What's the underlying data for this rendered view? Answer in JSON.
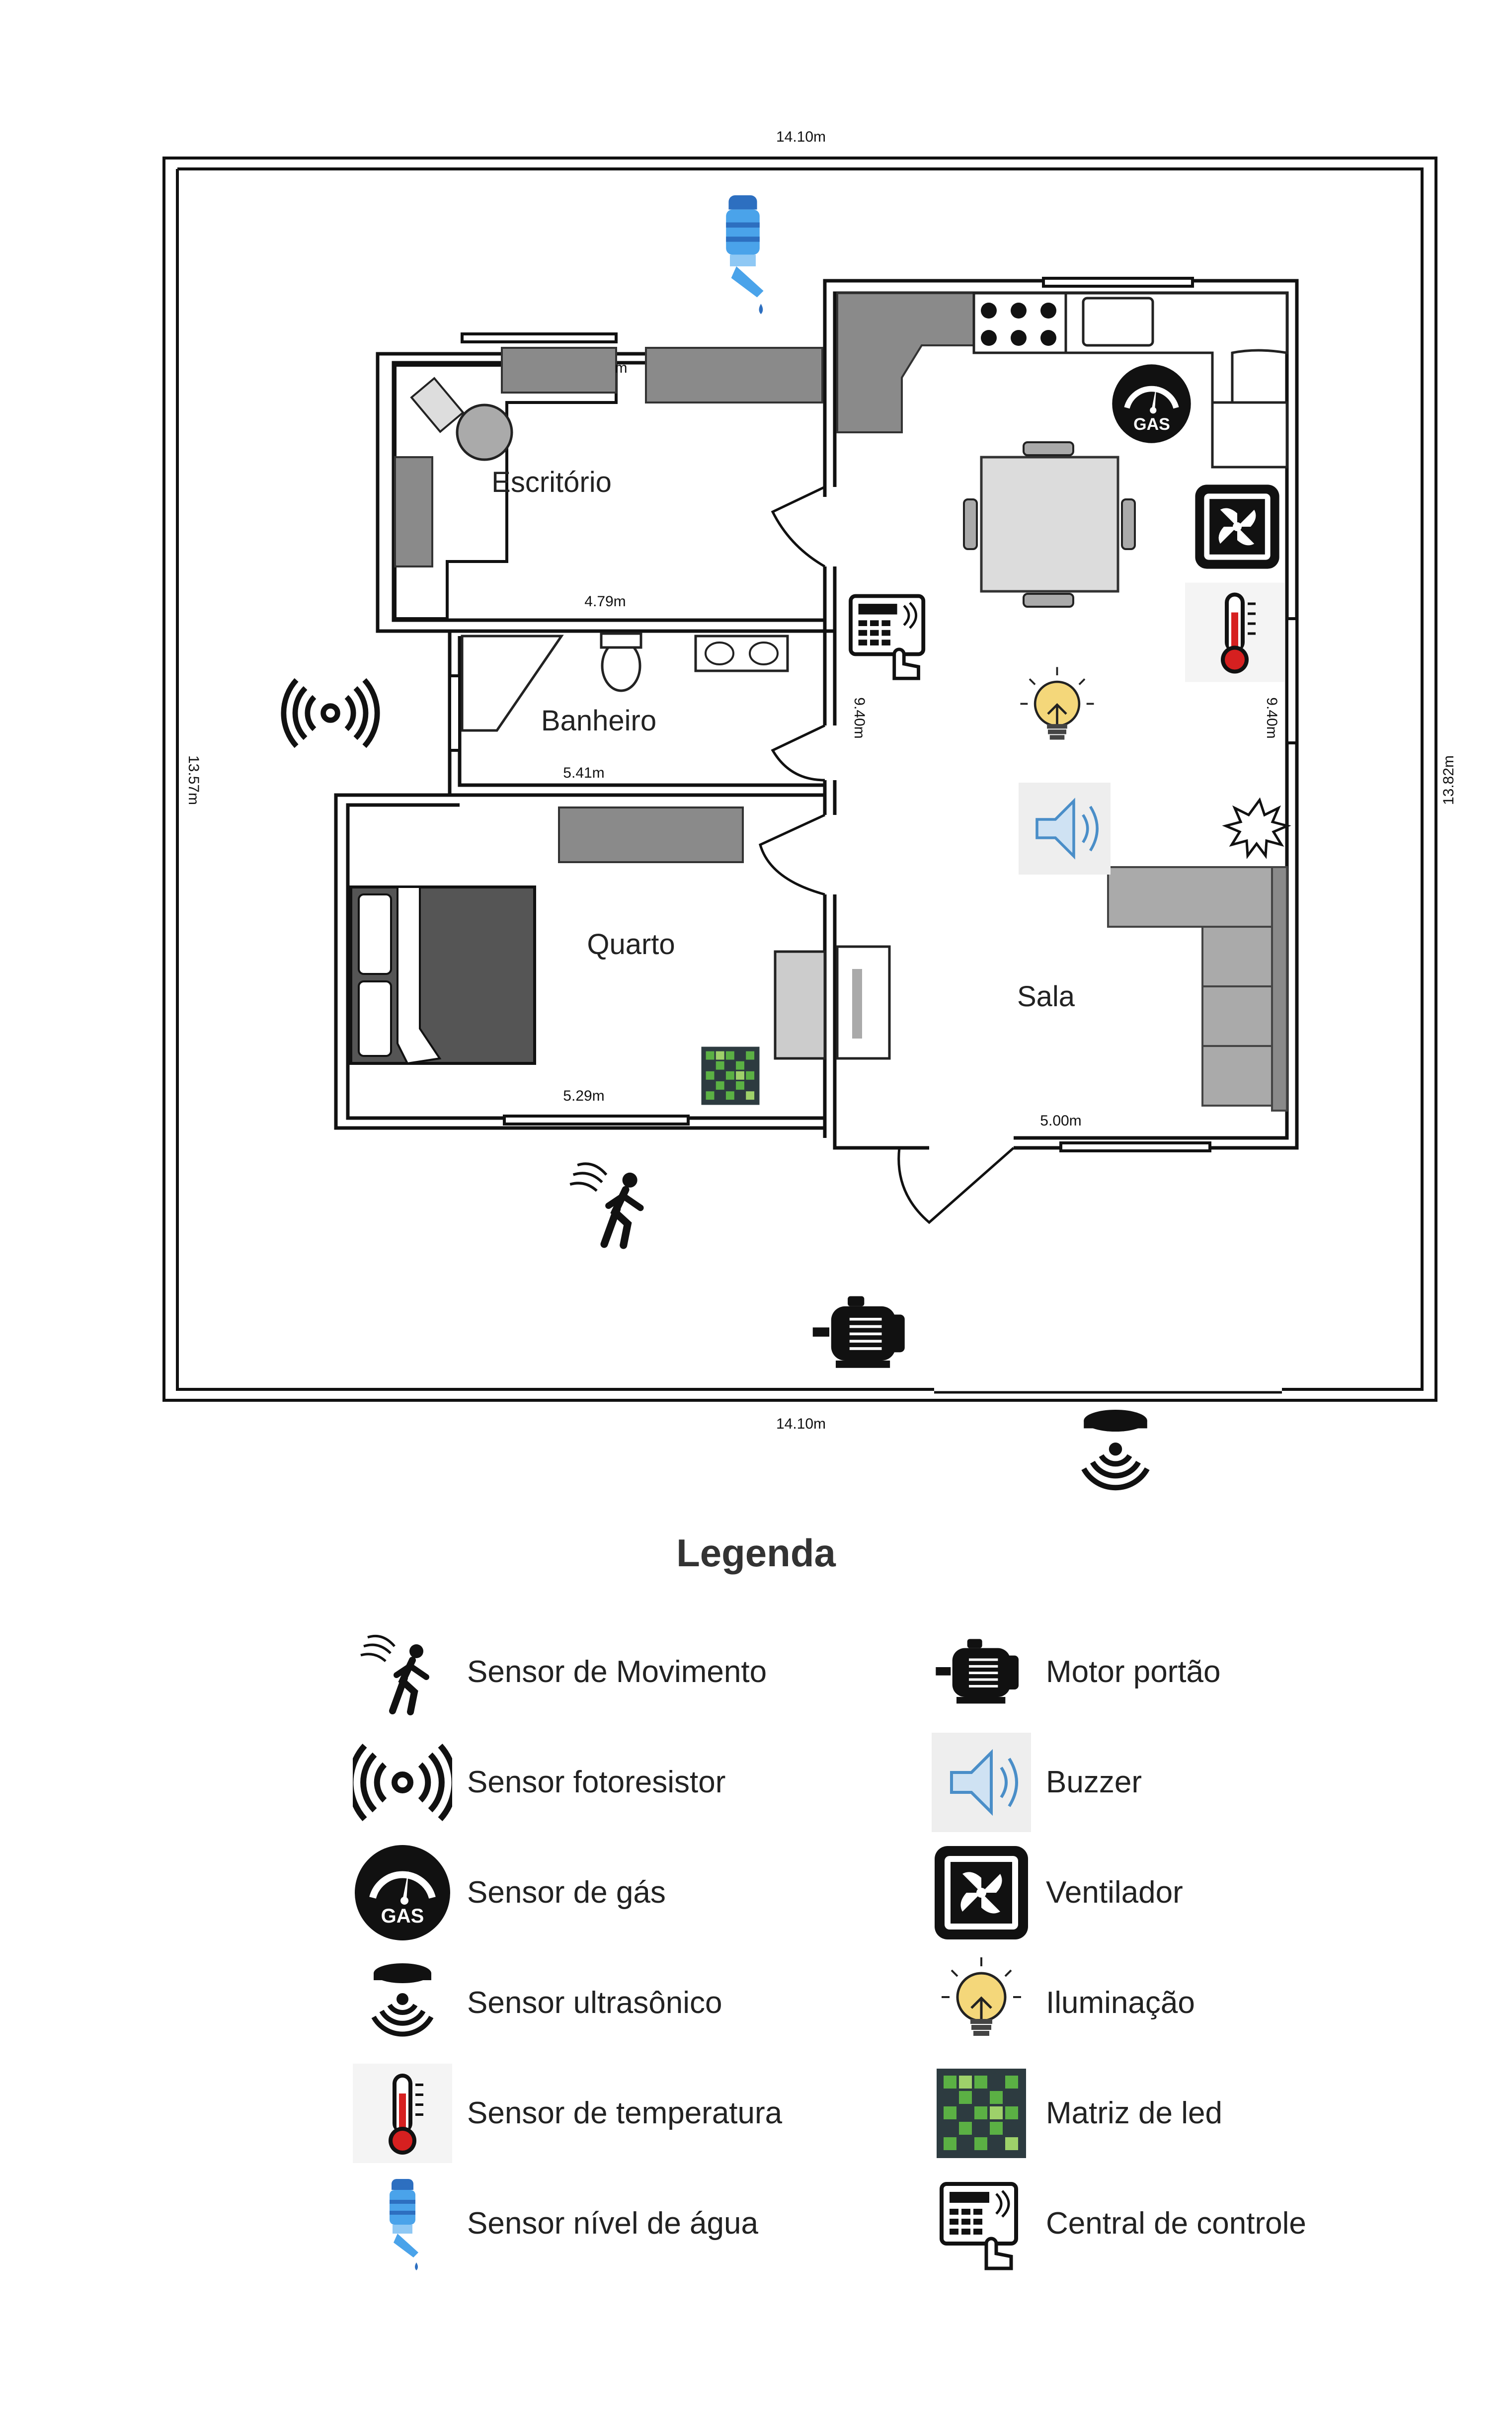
{
  "dimensions": {
    "top": "14.10m",
    "bottom": "14.10m",
    "left": "13.57m",
    "right": "13.82m",
    "escritorio_width": "4.79m",
    "escritorio_partial": "m",
    "banheiro_width": "5.41m",
    "quarto_width": "5.29m",
    "sala_width": "5.00m",
    "sala_height_left": "9.40m",
    "sala_height_right": "9.40m"
  },
  "rooms": {
    "escritorio": "Escritório",
    "banheiro": "Banheiro",
    "quarto": "Quarto",
    "sala": "Sala"
  },
  "gas_icon_text": "GAS",
  "legend": {
    "title": "Legenda",
    "left": [
      {
        "icon": "motion-sensor-icon",
        "label": "Sensor de Movimento"
      },
      {
        "icon": "photoresistor-icon",
        "label": "Sensor fotoresistor"
      },
      {
        "icon": "gas-sensor-icon",
        "label": "Sensor de gás"
      },
      {
        "icon": "ultrasonic-sensor-icon",
        "label": "Sensor ultrasônico"
      },
      {
        "icon": "thermometer-icon",
        "label": "Sensor de temperatura"
      },
      {
        "icon": "water-level-icon",
        "label": "Sensor nível de água"
      }
    ],
    "right": [
      {
        "icon": "gate-motor-icon",
        "label": "Motor portão"
      },
      {
        "icon": "buzzer-icon",
        "label": "Buzzer"
      },
      {
        "icon": "fan-icon",
        "label": "Ventilador"
      },
      {
        "icon": "light-bulb-icon",
        "label": "Iluminação"
      },
      {
        "icon": "led-matrix-icon",
        "label": "Matriz de led"
      },
      {
        "icon": "control-panel-icon",
        "label": "Central de controle"
      }
    ]
  },
  "colors": {
    "wall": "#111111",
    "furniture": "#8a8a8a",
    "furniture_dark": "#555555",
    "bulb": "#f4d77a",
    "water": "#3a8fd8",
    "thermo": "#d62020",
    "led_green": "#5bb044"
  }
}
